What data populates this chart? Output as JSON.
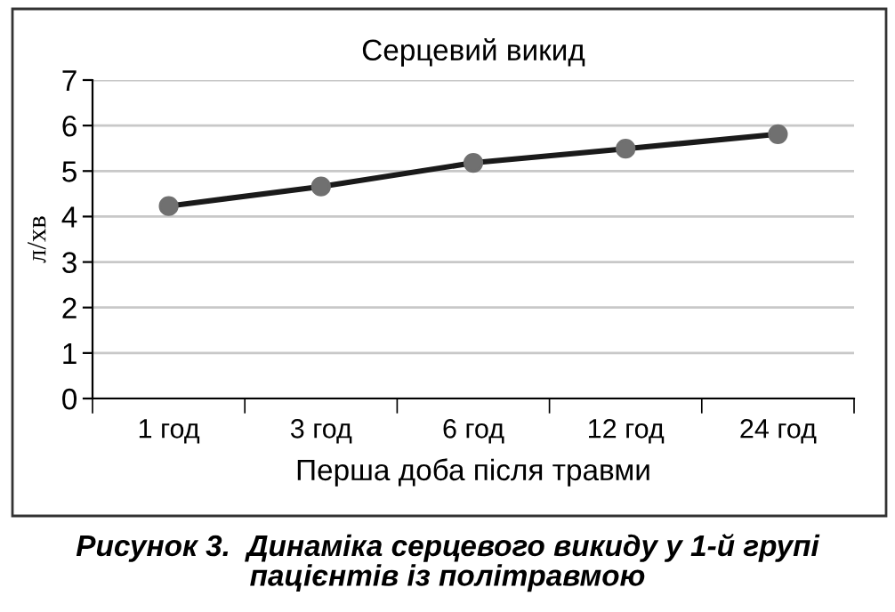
{
  "chart_data": {
    "type": "line",
    "title": "Серцевий викид",
    "xlabel": "Перша доба після травми",
    "ylabel": "л/хв",
    "categories": [
      "1 год",
      "3 год",
      "6 год",
      "12 год",
      "24 год"
    ],
    "series": [
      {
        "color": "#1a1a1a",
        "values": [
          4.23,
          4.66,
          5.18,
          5.49,
          5.81
        ]
      }
    ],
    "ylim": [
      0,
      7
    ],
    "yticks": [
      0,
      1,
      2,
      3,
      4,
      5,
      6,
      7
    ],
    "grid": "y",
    "marker": "circle",
    "line_style": "solid",
    "annotations": [
      "Рисунок 3.  Динаміка серцевого викиду у 1-й групі пацієнтів із політравмою"
    ]
  }
}
